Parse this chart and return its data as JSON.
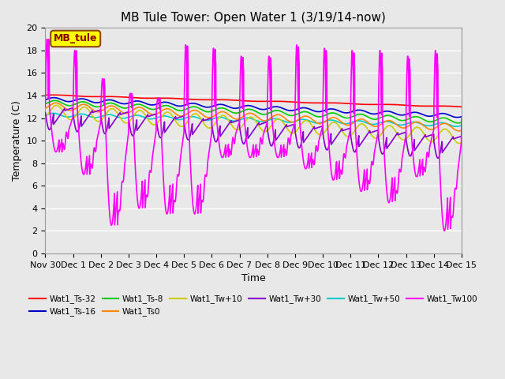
{
  "title": "MB Tule Tower: Open Water 1 (3/19/14-now)",
  "xlabel": "Time",
  "ylabel": "Temperature (C)",
  "ylim": [
    0,
    20
  ],
  "background_color": "#e8e8e8",
  "plot_bg_color": "#e8e8e8",
  "grid_color": "#ffffff",
  "label_box_text": "MB_tule",
  "label_box_color": "#ffff00",
  "label_box_border": "#8B4513",
  "label_box_text_color": "#8B0000",
  "xtick_labels": [
    "Nov 30",
    "Dec 1",
    "Dec 2",
    "Dec 3",
    "Dec 4",
    "Dec 5",
    "Dec 6",
    "Dec 7",
    "Dec 8",
    "Dec 9",
    "Dec 10",
    "Dec 11",
    "Dec 12",
    "Dec 13",
    "Dec 14",
    "Dec 15"
  ],
  "legend_entries": [
    {
      "label": "Wat1_Ts-32",
      "color": "#ff0000"
    },
    {
      "label": "Wat1_Ts-16",
      "color": "#0000cc"
    },
    {
      "label": "Wat1_Ts-8",
      "color": "#00cc00"
    },
    {
      "label": "Wat1_Ts0",
      "color": "#ff8800"
    },
    {
      "label": "Wat1_Tw+10",
      "color": "#cccc00"
    },
    {
      "label": "Wat1_Tw+30",
      "color": "#8800cc"
    },
    {
      "label": "Wat1_Tw+50",
      "color": "#00cccc"
    },
    {
      "label": "Wat1_Tw100",
      "color": "#ff00ff"
    }
  ]
}
